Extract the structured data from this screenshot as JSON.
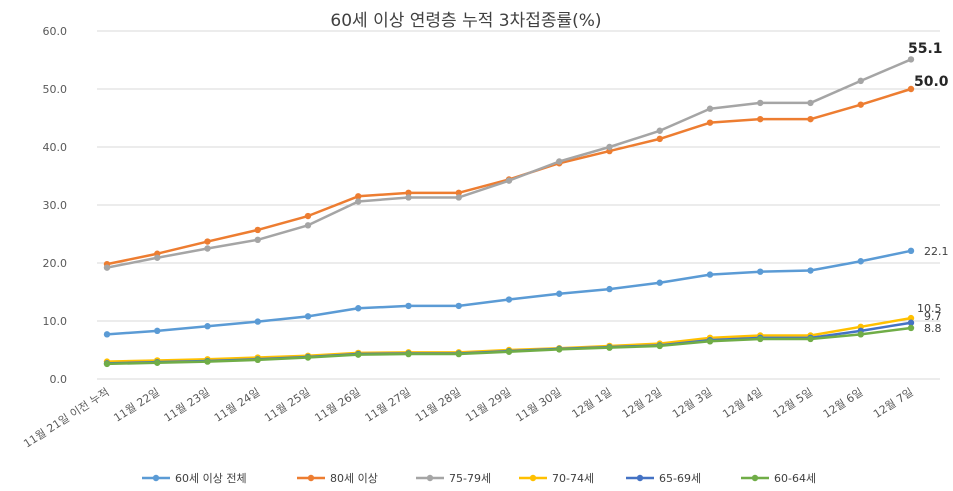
{
  "chart_data": {
    "type": "line",
    "title": "60세 이상 연령층 누적 3차접종률(%)",
    "xlabel": "",
    "ylabel": "",
    "ylim": [
      0,
      60
    ],
    "yticks": [
      "0.0",
      "10.0",
      "20.0",
      "30.0",
      "40.0",
      "50.0",
      "60.0"
    ],
    "grid": true,
    "legend": "bottom",
    "categories": [
      "11월 21일 이전 누적",
      "11월 22일",
      "11월 23일",
      "11월 24일",
      "11월 25일",
      "11월 26일",
      "11월 27일",
      "11월 28일",
      "11월 29일",
      "11월 30일",
      "12월 1일",
      "12월 2일",
      "12월 3일",
      "12월 4일",
      "12월 5일",
      "12월 6일",
      "12월 7일"
    ],
    "series": [
      {
        "name": "60세 이상 전체",
        "color": "#5B9BD5",
        "values": [
          7.7,
          8.3,
          9.1,
          9.9,
          10.8,
          12.2,
          12.6,
          12.6,
          13.7,
          14.7,
          15.5,
          16.6,
          18.0,
          18.5,
          18.7,
          20.3,
          22.1
        ],
        "end_label": "22.1",
        "end_label_bold": false
      },
      {
        "name": "80세 이상",
        "color": "#ED7D31",
        "values": [
          19.8,
          21.6,
          23.7,
          25.7,
          28.1,
          31.5,
          32.1,
          32.1,
          34.4,
          37.2,
          39.3,
          41.4,
          44.2,
          44.8,
          44.8,
          47.3,
          50.0
        ],
        "end_label": "50.0",
        "end_label_bold": true
      },
      {
        "name": "75-79세",
        "color": "#A5A5A5",
        "values": [
          19.2,
          20.9,
          22.5,
          24.0,
          26.5,
          30.6,
          31.3,
          31.3,
          34.2,
          37.5,
          40.0,
          42.8,
          46.6,
          47.6,
          47.6,
          51.4,
          55.1
        ],
        "end_label": "55.1",
        "end_label_bold": true
      },
      {
        "name": "70-74세",
        "color": "#FFC000",
        "values": [
          3.0,
          3.2,
          3.4,
          3.7,
          4.0,
          4.5,
          4.6,
          4.6,
          5.0,
          5.3,
          5.7,
          6.1,
          7.1,
          7.5,
          7.5,
          9.0,
          10.5
        ],
        "end_label": "10.5",
        "end_label_bold": false
      },
      {
        "name": "65-69세",
        "color": "#4472C4",
        "values": [
          2.7,
          2.9,
          3.1,
          3.4,
          3.8,
          4.3,
          4.4,
          4.4,
          4.8,
          5.2,
          5.5,
          5.8,
          6.7,
          7.1,
          7.1,
          8.3,
          9.7
        ],
        "end_label": "9.7",
        "end_label_bold": false
      },
      {
        "name": "60-64세",
        "color": "#70AD47",
        "values": [
          2.6,
          2.8,
          3.0,
          3.3,
          3.7,
          4.2,
          4.3,
          4.3,
          4.7,
          5.1,
          5.4,
          5.7,
          6.5,
          6.9,
          6.9,
          7.7,
          8.8
        ],
        "end_label": "8.8",
        "end_label_bold": false
      }
    ]
  }
}
